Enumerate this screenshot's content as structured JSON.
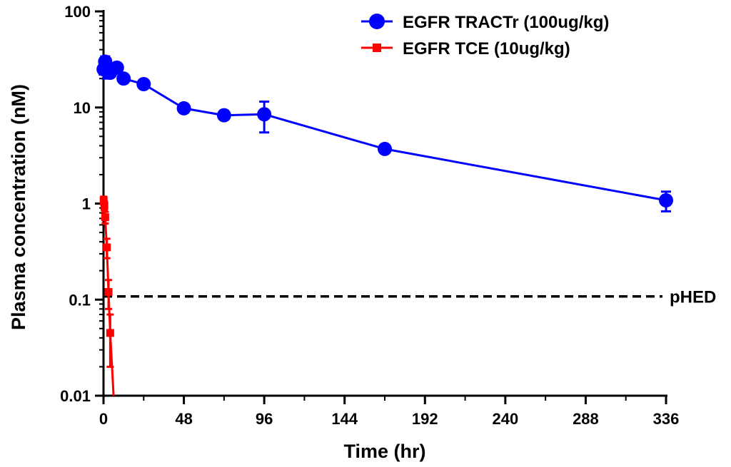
{
  "chart_data": {
    "type": "line",
    "title": "",
    "xlabel": "Time (hr)",
    "ylabel": "Plasma concentration (nM)",
    "x_scale": "linear",
    "y_scale": "log",
    "xlim": [
      0,
      336
    ],
    "ylim": [
      0.01,
      100
    ],
    "x_ticks": [
      0,
      48,
      96,
      144,
      192,
      240,
      288,
      336
    ],
    "y_ticks": [
      0.01,
      0.1,
      1,
      10,
      100
    ],
    "y_tick_labels": [
      "0.01",
      "0.1",
      "1",
      "10",
      "100"
    ],
    "grid": false,
    "legend_position": "top-right",
    "series": [
      {
        "name": "EGFR TRACTr (100ug/kg)",
        "color": "#0000ff",
        "marker": "circle",
        "points": [
          {
            "x": 0.083,
            "y": 25,
            "err": 3
          },
          {
            "x": 1,
            "y": 30,
            "err": 4
          },
          {
            "x": 2,
            "y": 24,
            "err": 4
          },
          {
            "x": 4,
            "y": 23,
            "err": 2
          },
          {
            "x": 8,
            "y": 26,
            "err": 2
          },
          {
            "x": 12,
            "y": 20,
            "err": 1.5
          },
          {
            "x": 24,
            "y": 17.5,
            "err": 1
          },
          {
            "x": 48,
            "y": 9.8,
            "err": 0.5
          },
          {
            "x": 72,
            "y": 8.3,
            "err": 0.8
          },
          {
            "x": 96,
            "y": 8.5,
            "err": 3
          },
          {
            "x": 168,
            "y": 3.7,
            "err": 0.2
          },
          {
            "x": 336,
            "y": 1.08,
            "err": 0.25
          }
        ]
      },
      {
        "name": "EGFR TCE (10ug/kg)",
        "color": "#ff0000",
        "marker": "square",
        "points": [
          {
            "x": 0.083,
            "y": 1.08,
            "err": 0.1
          },
          {
            "x": 0.5,
            "y": 0.95,
            "err": 0.1
          },
          {
            "x": 1,
            "y": 0.72,
            "err": 0.1
          },
          {
            "x": 2,
            "y": 0.35,
            "err": 0.08
          },
          {
            "x": 3,
            "y": 0.12,
            "err": 0.04
          },
          {
            "x": 4,
            "y": 0.045,
            "err": 0.025
          }
        ],
        "fit_end": {
          "x": 6,
          "y": 0.01
        }
      }
    ],
    "reference_line": {
      "label": "pHED",
      "y": 0.108,
      "color": "#000000",
      "style": "dashed"
    }
  }
}
